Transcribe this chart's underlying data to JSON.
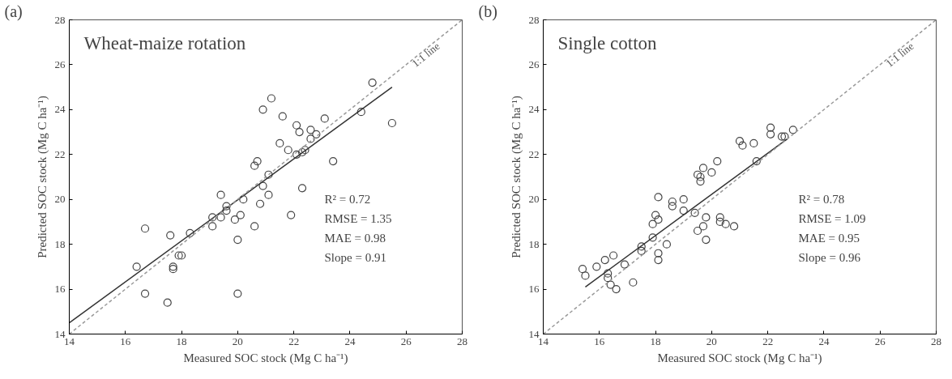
{
  "chart_data": [
    {
      "type": "scatter",
      "title": "Wheat-maize rotation",
      "xlabel": "Measured SOC stock (Mg C ha⁻¹)",
      "ylabel": "Predicted SOC stock (Mg C ha⁻¹)",
      "xlim": [
        14,
        28
      ],
      "ylim": [
        14,
        28
      ],
      "xticks": [
        14,
        16,
        18,
        20,
        22,
        24,
        26,
        28
      ],
      "yticks": [
        14,
        16,
        18,
        20,
        22,
        24,
        26,
        28
      ],
      "marker": "circle",
      "grid": false,
      "annotations": [
        "(a)",
        "R² = 0.72",
        "RMSE = 1.35",
        "MAE = 0.98",
        "Slope = 0.91",
        "1:1 line"
      ],
      "series": [
        {
          "color": "#444444",
          "x": [
            16.4,
            16.7,
            16.7,
            17.5,
            17.6,
            17.7,
            17.7,
            17.9,
            18.0,
            18.3,
            19.1,
            19.1,
            19.4,
            19.4,
            19.6,
            19.6,
            19.9,
            20.0,
            20.0,
            20.1,
            20.2,
            20.6,
            20.6,
            20.7,
            20.8,
            20.9,
            20.9,
            21.1,
            21.1,
            21.2,
            21.5,
            21.6,
            21.8,
            21.9,
            22.1,
            22.1,
            22.2,
            22.3,
            22.3,
            22.4,
            22.6,
            22.6,
            22.8,
            23.1,
            23.4,
            24.4,
            24.8,
            25.5
          ],
          "values": [
            17.0,
            18.7,
            15.8,
            15.4,
            18.4,
            17.0,
            16.9,
            17.5,
            17.5,
            18.5,
            19.2,
            18.8,
            20.2,
            19.2,
            19.7,
            19.5,
            19.1,
            18.2,
            15.8,
            19.3,
            20.0,
            18.8,
            21.5,
            21.7,
            19.8,
            24.0,
            20.6,
            21.1,
            20.2,
            24.5,
            22.5,
            23.7,
            22.2,
            19.3,
            22.0,
            23.3,
            23.0,
            20.5,
            22.1,
            22.2,
            23.1,
            22.7,
            22.9,
            23.6,
            21.7,
            23.9,
            25.2,
            23.4
          ]
        },
        {
          "type": "line",
          "marker": "none",
          "color": "#333333",
          "line_style": "solid",
          "x": [
            14,
            25.5
          ],
          "values": [
            14.5,
            25.0
          ]
        },
        {
          "type": "line",
          "marker": "none",
          "color": "#999999",
          "line_style": "dashed",
          "x": [
            14,
            28
          ],
          "values": [
            14,
            28
          ]
        }
      ]
    },
    {
      "type": "scatter",
      "title": "Single cotton",
      "xlabel": "Measured SOC stock (Mg C ha⁻¹)",
      "ylabel": "Predicted SOC stock (Mg C ha⁻¹)",
      "xlim": [
        14,
        28
      ],
      "ylim": [
        14,
        28
      ],
      "xticks": [
        14,
        16,
        18,
        20,
        22,
        24,
        26,
        28
      ],
      "yticks": [
        14,
        16,
        18,
        20,
        22,
        24,
        26,
        28
      ],
      "marker": "circle",
      "grid": false,
      "annotations": [
        "(b)",
        "R² = 0.78",
        "RMSE = 1.09",
        "MAE = 0.95",
        "Slope = 0.96",
        "1:1 line"
      ],
      "series": [
        {
          "color": "#444444",
          "x": [
            15.4,
            15.5,
            15.9,
            16.2,
            16.3,
            16.3,
            16.4,
            16.5,
            16.6,
            16.9,
            17.2,
            17.5,
            17.5,
            17.9,
            17.9,
            18.0,
            18.1,
            18.1,
            18.1,
            18.1,
            18.4,
            18.6,
            18.6,
            19.0,
            19.0,
            19.4,
            19.5,
            19.5,
            19.6,
            19.6,
            19.7,
            19.7,
            19.8,
            19.8,
            20.0,
            20.2,
            20.3,
            20.3,
            20.5,
            20.8,
            21.0,
            21.1,
            21.5,
            21.6,
            22.1,
            22.1,
            22.5,
            22.6,
            22.9
          ],
          "values": [
            16.9,
            16.6,
            17.0,
            17.3,
            16.7,
            16.5,
            16.2,
            17.5,
            16.0,
            17.1,
            16.3,
            17.7,
            17.9,
            18.3,
            18.9,
            19.3,
            17.6,
            17.3,
            20.1,
            19.1,
            18.0,
            19.9,
            19.7,
            20.0,
            19.5,
            19.4,
            18.6,
            21.1,
            21.0,
            20.8,
            21.4,
            18.8,
            19.2,
            18.2,
            21.2,
            21.7,
            19.2,
            19.0,
            18.9,
            18.8,
            22.6,
            22.4,
            22.5,
            21.7,
            23.2,
            22.9,
            22.8,
            22.8,
            23.1
          ]
        },
        {
          "type": "line",
          "marker": "none",
          "color": "#333333",
          "line_style": "solid",
          "x": [
            15.5,
            22.7
          ],
          "values": [
            16.1,
            22.7
          ]
        },
        {
          "type": "line",
          "marker": "none",
          "color": "#999999",
          "line_style": "dashed",
          "x": [
            14,
            28
          ],
          "values": [
            14,
            28
          ]
        }
      ]
    }
  ]
}
